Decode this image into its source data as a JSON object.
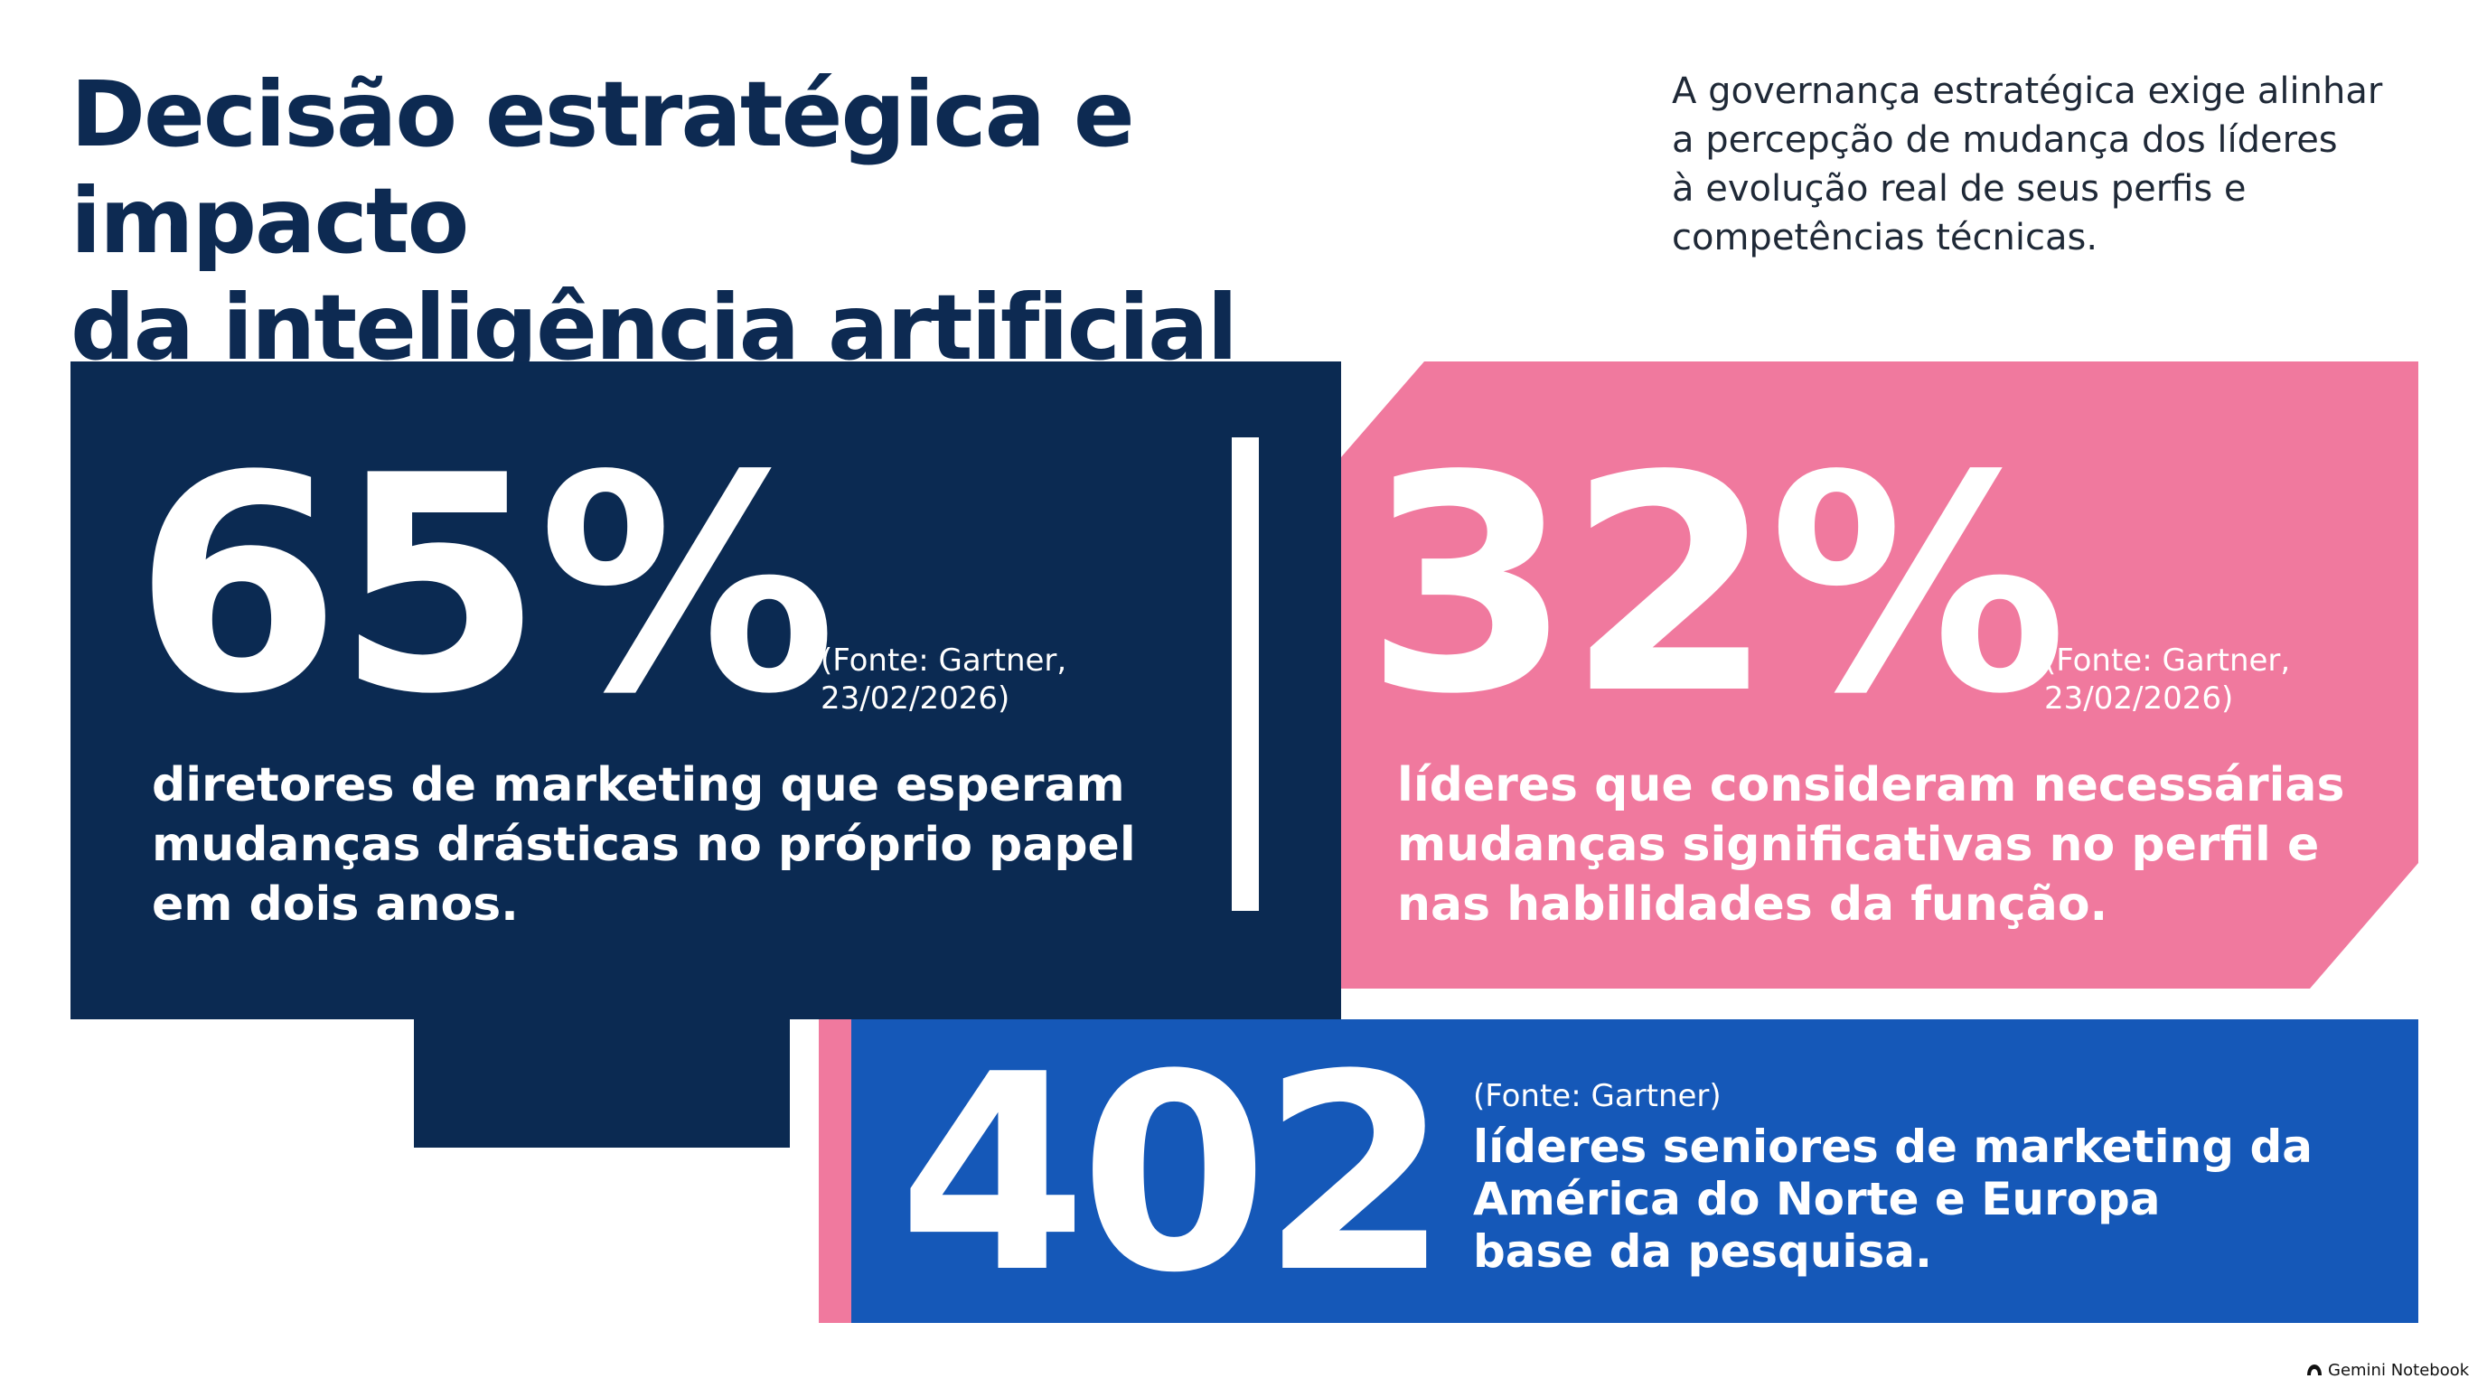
{
  "header": {
    "title_lines": [
      "Decisão estratégica e impacto",
      "da inteligência artificial"
    ],
    "intro_lines": [
      "A governança estratégica exige alinhar",
      "a percepção de mudança dos líderes",
      "à evolução real de seus perfis e",
      "competências técnicas."
    ]
  },
  "stats": [
    {
      "value": "65%",
      "source_lines": [
        "(Fonte: Gartner,",
        "23/02/2026)"
      ],
      "description_lines": [
        "diretores de marketing que esperam",
        "mudanças drásticas no próprio papel",
        "em dois anos."
      ]
    },
    {
      "value": "32%",
      "source_lines": [
        "(Fonte: Gartner,",
        "23/02/2026)"
      ],
      "description_lines": [
        "líderes que consideram necessárias",
        "mudanças significativas no perfil e",
        "nas habilidades da função."
      ]
    },
    {
      "value": "402",
      "source_lines": [
        "(Fonte: Gartner)"
      ],
      "description_lines": [
        "líderes seniores de marketing da",
        "América do Norte e Europa",
        "base da pesquisa."
      ]
    }
  ],
  "footer": {
    "brand": "Gemini Notebook"
  },
  "colors": {
    "navy": "#0b2a52",
    "pink": "#f0799e",
    "blue": "#1558b8",
    "title": "#0d2a52"
  }
}
